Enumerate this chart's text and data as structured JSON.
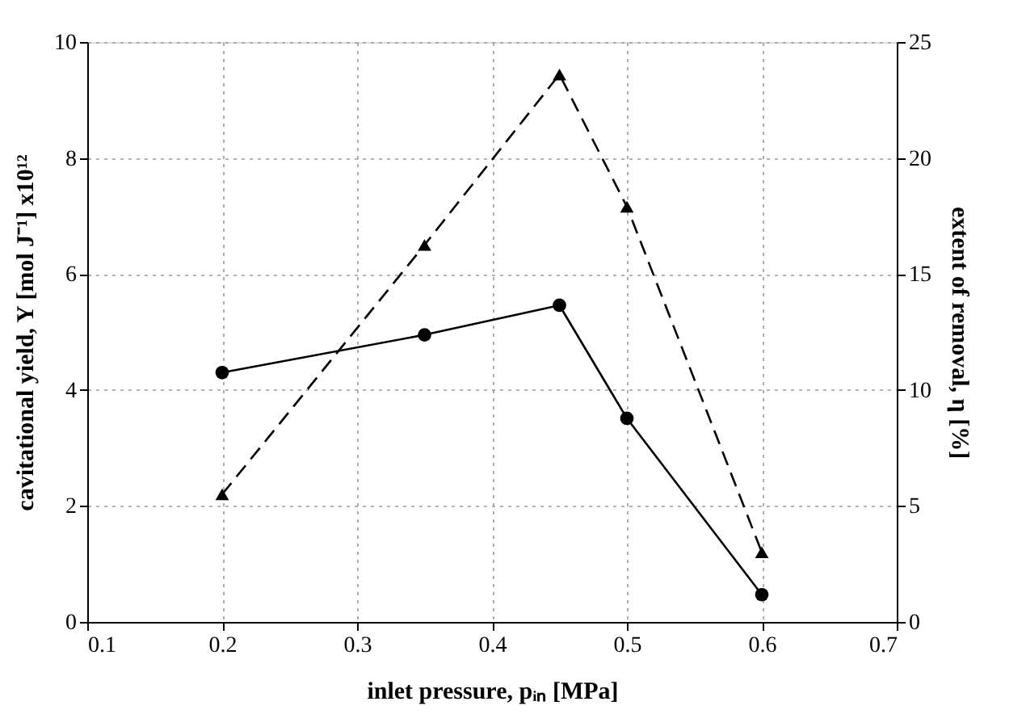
{
  "chart_data": {
    "type": "line",
    "xlabel": "inlet pressure, pᵢₙ [MPa]",
    "ylabel": "cavitational yield, Y [mol J⁻¹] x10¹²",
    "y2label": "extent of removal, η [%]",
    "x": [
      0.2,
      0.35,
      0.45,
      0.5,
      0.6
    ],
    "series": [
      {
        "color": "#000000",
        "values": [
          4.3,
          4.95,
          5.46,
          3.51,
          0.47
        ],
        "axis": "y",
        "marker": "circle",
        "line_style": "solid"
      },
      {
        "color": "#000000",
        "values": [
          5.5,
          16.25,
          23.6,
          17.9,
          3.0
        ],
        "axis": "y2",
        "marker": "triangle",
        "line_style": "dashed"
      }
    ],
    "xlim": [
      0.1,
      0.7
    ],
    "xticks": [
      0.1,
      0.2,
      0.3,
      0.4,
      0.5,
      0.6,
      0.7
    ],
    "ylim": [
      0,
      10
    ],
    "yticks": [
      0,
      2,
      4,
      6,
      8,
      10
    ],
    "y2lim": [
      0,
      25
    ],
    "y2ticks": [
      0,
      5,
      10,
      15,
      20,
      25
    ],
    "grid": true
  }
}
